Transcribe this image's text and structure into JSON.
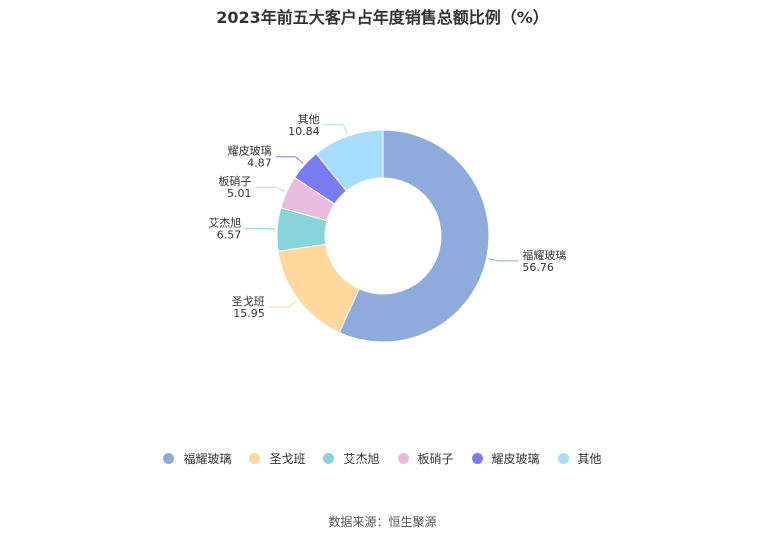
{
  "title": "2023年前五大客户占年度销售总额比例（%）",
  "source": "数据来源：恒生聚源",
  "chart_data": {
    "type": "pie",
    "categories": [
      "福耀玻璃",
      "圣戈班",
      "艾杰旭",
      "板硝子",
      "耀皮玻璃",
      "其他"
    ],
    "values": [
      56.76,
      15.95,
      6.57,
      5.01,
      4.87,
      10.84
    ],
    "colors": [
      "#8eabdb",
      "#fed89c",
      "#86d4d8",
      "#e7bcdc",
      "#7a7bf0",
      "#a7dcfa"
    ],
    "legend_position": "bottom"
  },
  "legend": [
    {
      "label": "福耀玻璃",
      "color": "#8eabdb"
    },
    {
      "label": "圣戈班",
      "color": "#fed89c"
    },
    {
      "label": "艾杰旭",
      "color": "#86d4d8"
    },
    {
      "label": "板硝子",
      "color": "#e7bcdc"
    },
    {
      "label": "耀皮玻璃",
      "color": "#7a7bf0"
    },
    {
      "label": "其他",
      "color": "#a7dcfa"
    }
  ]
}
